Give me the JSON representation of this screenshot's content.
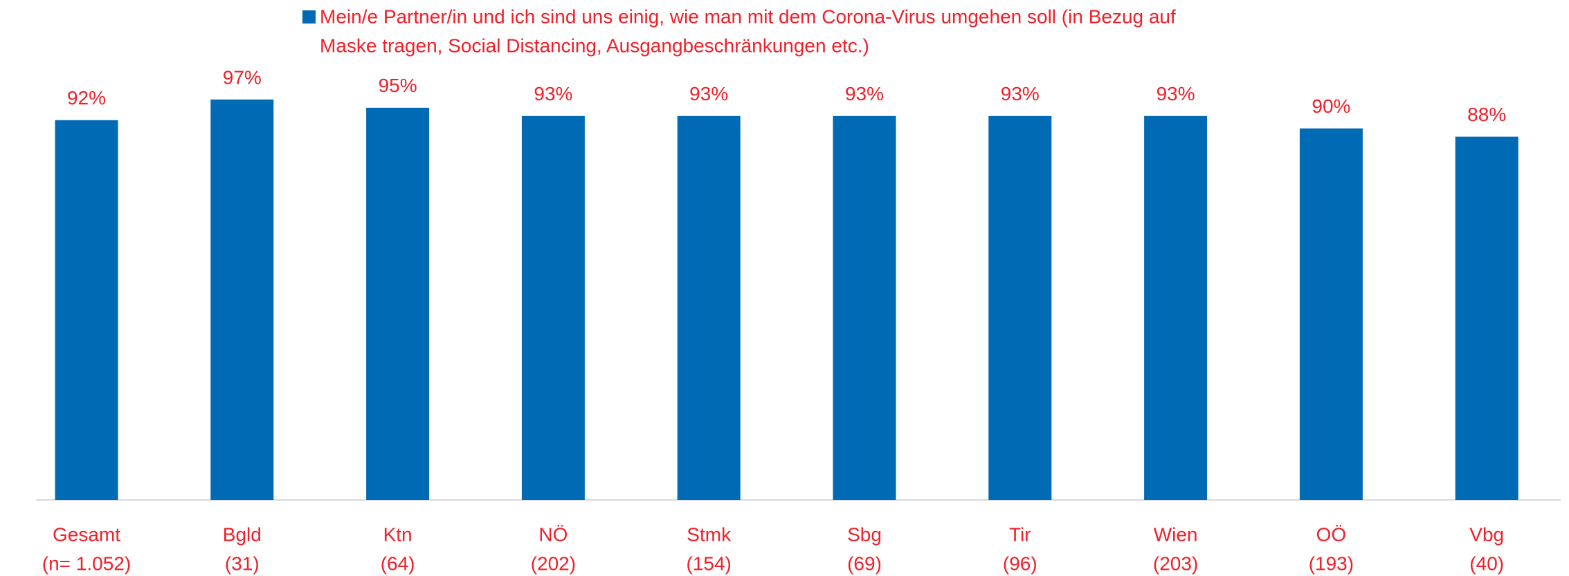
{
  "chart_data": {
    "type": "bar",
    "categories": [
      "Gesamt",
      "Bgld",
      "Ktn",
      "NÖ",
      "Stmk",
      "Sbg",
      "Tir",
      "Wien",
      "OÖ",
      "Vbg"
    ],
    "category_sublabels": [
      "(n= 1.052)",
      "(31)",
      "(64)",
      "(202)",
      "(154)",
      "(69)",
      "(96)",
      "(203)",
      "(193)",
      "(40)"
    ],
    "series": [
      {
        "name": "Mein/e Partner/in und ich sind uns einig, wie man mit dem Corona-Virus umgehen soll (in Bezug auf Maske tragen, Social Distancing, Ausgangbeschränkungen etc.)",
        "name_lines": [
          "Mein/e Partner/in und ich sind uns einig, wie man mit dem Corona-Virus umgehen soll (in Bezug auf",
          "Maske tragen, Social Distancing, Ausgangbeschränkungen etc.)"
        ],
        "color": "#006ab4",
        "values": [
          92,
          97,
          95,
          93,
          93,
          93,
          93,
          93,
          90,
          88
        ],
        "value_labels": [
          "92%",
          "97%",
          "95%",
          "93%",
          "93%",
          "93%",
          "93%",
          "93%",
          "90%",
          "88%"
        ]
      }
    ],
    "ylim": [
      0,
      100
    ],
    "legend": "top"
  }
}
